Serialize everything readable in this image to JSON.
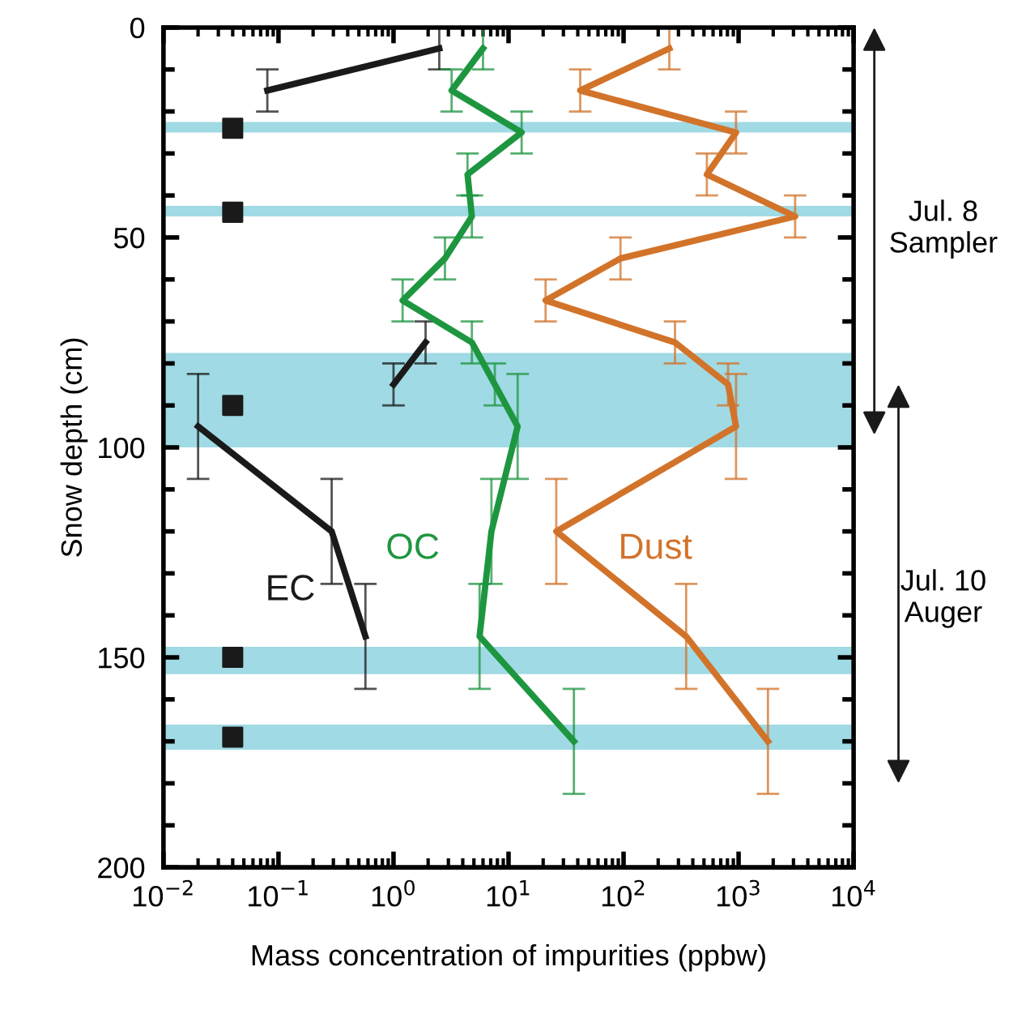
{
  "chart_data": {
    "type": "line",
    "xlabel": "Mass concentration of impurities (ppbw)",
    "ylabel": "Snow depth (cm)",
    "log": "x",
    "xlim": [
      0.01,
      10000
    ],
    "ylim": [
      200,
      0
    ],
    "xticks": [
      {
        "value": 0.01,
        "label": "10$^{−2}$"
      },
      {
        "value": 0.1,
        "label": "10$^{−1}$"
      },
      {
        "value": 1,
        "label": "10$^{0}$"
      },
      {
        "value": 10,
        "label": "10$^{1}$"
      },
      {
        "value": 100,
        "label": "10$^{2}$"
      },
      {
        "value": 1000,
        "label": "10$^{3}$"
      },
      {
        "value": 10000,
        "label": "10$^{4}$"
      }
    ],
    "yticks": [
      0,
      {
        "value": 10,
        "label": null
      },
      {
        "value": 20,
        "label": null
      },
      {
        "value": 30,
        "label": null
      },
      {
        "value": 40,
        "label": null
      },
      50,
      {
        "value": 60,
        "label": null
      },
      {
        "value": 70,
        "label": null
      },
      {
        "value": 80,
        "label": null
      },
      {
        "value": 90,
        "label": null
      },
      100,
      {
        "value": 110,
        "label": null
      },
      {
        "value": 120,
        "label": null
      },
      {
        "value": 130,
        "label": null
      },
      {
        "value": 140,
        "label": null
      },
      150,
      {
        "value": 160,
        "label": null
      },
      {
        "value": 170,
        "label": null
      },
      {
        "value": 180,
        "label": null
      },
      {
        "value": 190,
        "label": null
      },
      200
    ],
    "grid": false,
    "marker": "none",
    "line_style": "solid",
    "annotations": [
      "Jul. 8\nSampler",
      "Jul. 10\nAuger"
    ],
    "series": [
      {
        "name": "EC",
        "color": "#1a1a1a",
        "x": [
          2.5,
          0.08,
          null,
          1.9,
          1.0,
          null,
          0.02,
          0.29,
          0.57
        ],
        "values": [
          5,
          15,
          null,
          75,
          85,
          null,
          95,
          120,
          145
        ],
        "errors": [
          5,
          5,
          null,
          5,
          5,
          null,
          12.5,
          12.5,
          12.5
        ]
      },
      {
        "name": "OC",
        "color": "#1e9640",
        "x": [
          6,
          3.2,
          13,
          4.4,
          4.8,
          2.8,
          1.2,
          4.8,
          7.6,
          12,
          7.1,
          5.6,
          37
        ],
        "values": [
          5,
          15,
          25,
          35,
          45,
          55,
          65,
          75,
          85,
          95,
          120,
          145,
          170
        ],
        "errors": [
          5,
          5,
          5,
          5,
          5,
          5,
          5,
          5,
          5,
          12.5,
          12.5,
          12.5,
          12.5
        ]
      },
      {
        "name": "Dust",
        "color": "#d2732a",
        "x": [
          250,
          42,
          950,
          530,
          3100,
          94,
          21,
          280,
          810,
          950,
          26,
          350,
          1800
        ],
        "values": [
          5,
          15,
          25,
          35,
          45,
          55,
          65,
          75,
          85,
          95,
          120,
          145,
          170
        ],
        "errors": [
          5,
          5,
          5,
          5,
          5,
          5,
          5,
          5,
          5,
          12.5,
          12.5,
          12.5,
          12.5
        ]
      },
      {
        "type": "scatter",
        "marker": "square",
        "color": "#1a1a1a",
        "x": [
          0.04,
          0.04,
          0.04,
          0.04,
          0.04
        ],
        "values": [
          24,
          44,
          90,
          150,
          169
        ]
      }
    ],
    "bands": [
      {
        "axis": "y",
        "from": 22.5,
        "to": 25,
        "color": "#a0dae4"
      },
      {
        "axis": "y",
        "from": 42.5,
        "to": 45,
        "color": "#a0dae4"
      },
      {
        "axis": "y",
        "from": 77.5,
        "to": 100,
        "color": "#a0dae4"
      },
      {
        "axis": "y",
        "from": 147.5,
        "to": 154,
        "color": "#a0dae4"
      },
      {
        "axis": "y",
        "from": 166,
        "to": 172,
        "color": "#a0dae4"
      }
    ]
  }
}
